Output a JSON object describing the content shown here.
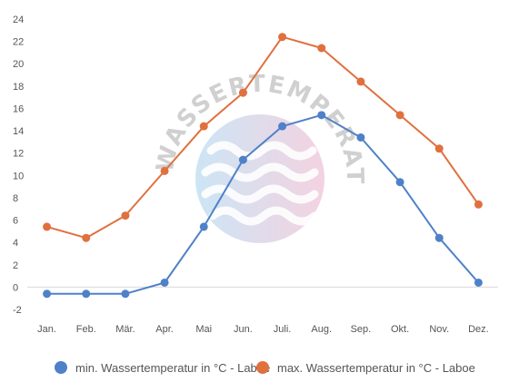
{
  "watermark": {
    "text": "WASSERTEMPERATUR.ORG",
    "colors": [
      "#aad4ee",
      "#ecb4cc"
    ]
  },
  "chart_data": {
    "type": "line",
    "categories": [
      "Jan.",
      "Feb.",
      "Mär.",
      "Apr.",
      "Mai",
      "Jun.",
      "Juli.",
      "Aug.",
      "Sep.",
      "Okt.",
      "Nov.",
      "Dez."
    ],
    "ylim": [
      -2,
      24
    ],
    "yticks": [
      -2,
      0,
      2,
      4,
      6,
      8,
      10,
      12,
      14,
      16,
      18,
      20,
      22,
      24
    ],
    "grid": false,
    "legend_position": "bottom",
    "series": [
      {
        "name": "min. Wassertemperatur in °C - Laboe",
        "color": "#4f81c8",
        "values": [
          -0.6,
          -0.6,
          -0.6,
          0.4,
          5.4,
          11.4,
          14.4,
          15.4,
          13.4,
          9.4,
          4.4,
          0.4
        ]
      },
      {
        "name": "max. Wassertemperatur in °C - Laboe",
        "color": "#e0703e",
        "values": [
          5.4,
          4.4,
          6.4,
          10.4,
          14.4,
          17.4,
          22.4,
          21.4,
          18.4,
          15.4,
          12.4,
          7.4
        ]
      }
    ]
  }
}
